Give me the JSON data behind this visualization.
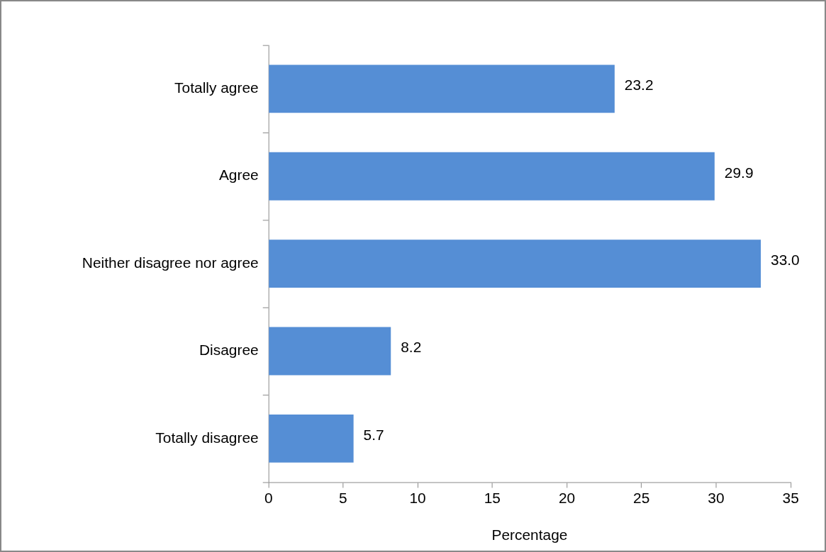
{
  "chart_data": {
    "type": "bar",
    "orientation": "horizontal",
    "categories": [
      "Totally agree",
      "Agree",
      "Neither disagree nor agree",
      "Disagree",
      "Totally disagree"
    ],
    "values": [
      23.2,
      29.9,
      33.0,
      8.2,
      5.7
    ],
    "value_labels": [
      "23.2",
      "29.9",
      "33.0",
      "8.2",
      "5.7"
    ],
    "color": "#558ed5",
    "xlabel": "Percentage",
    "xlim": [
      0,
      35
    ],
    "xticks": [
      0,
      5,
      10,
      15,
      20,
      25,
      30,
      35
    ],
    "grid": false,
    "legend": false
  }
}
